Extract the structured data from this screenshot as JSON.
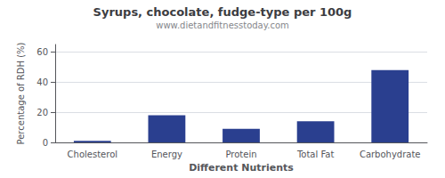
{
  "chart_data": {
    "type": "bar",
    "title": "Syrups, chocolate, fudge-type per 100g",
    "subtitle": "www.dietandfitnesstoday.com",
    "xlabel": "Different Nutrients",
    "ylabel": "Percentage of RDH (%)",
    "categories": [
      "Cholesterol",
      "Energy",
      "Protein",
      "Total Fat",
      "Carbohydrate"
    ],
    "values": [
      1.0,
      18.0,
      9.0,
      14.0,
      48.0
    ],
    "color": "#2a3f8f",
    "ylim": [
      0,
      65
    ],
    "yticks": [
      0,
      20,
      40,
      60
    ],
    "grid": true
  }
}
